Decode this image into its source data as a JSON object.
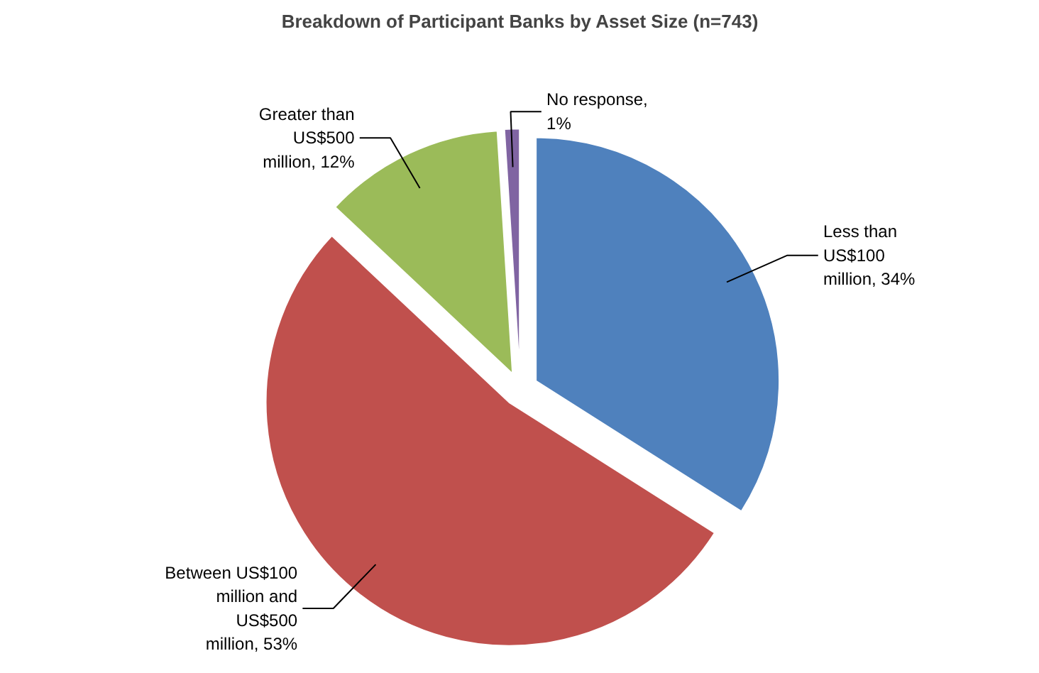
{
  "chart_data": {
    "type": "pie",
    "title": "Breakdown of Participant Banks by Asset Size (n=743)",
    "categories": [
      "Less than US$100 million, 34%",
      "Between US$100 million and US$500 million, 53%",
      "Greater than US$500 million, 12%",
      "No response, 1%"
    ],
    "values": [
      34,
      53,
      12,
      1
    ],
    "colors": [
      "#4f81bd",
      "#c0504d",
      "#9bbb59",
      "#8064a2"
    ]
  }
}
